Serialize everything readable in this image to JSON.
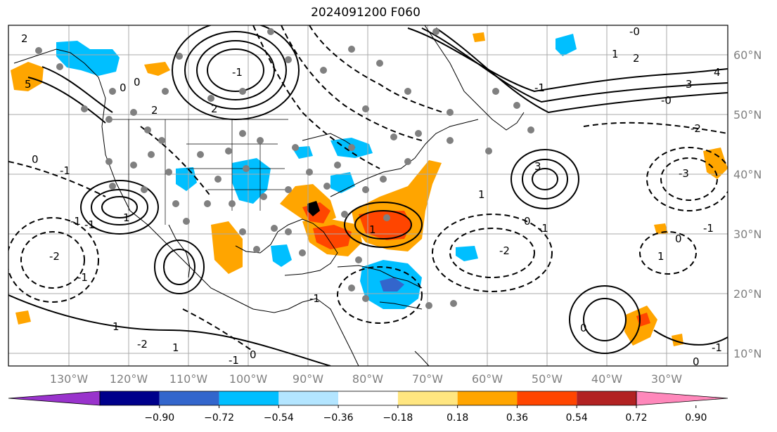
{
  "title": "2024091200 F060",
  "lon_labels": [
    "130°W",
    "120°W",
    "110°W",
    "100°W",
    "90°W",
    "80°W",
    "70°W",
    "60°W",
    "50°W",
    "40°W",
    "30°W"
  ],
  "lat_labels": [
    "60°N",
    "50°N",
    "40°N",
    "30°N",
    "20°N",
    "10°N"
  ],
  "colorbar": {
    "ticks": [
      "−0.90",
      "−0.72",
      "−0.54",
      "−0.36",
      "−0.18",
      "0.18",
      "0.36",
      "0.54",
      "0.72",
      "0.90"
    ],
    "colors": [
      "#9933cc",
      "#00008b",
      "#3366cc",
      "#00bfff",
      "#b3e5ff",
      "#ffffff",
      "#ffe680",
      "#ffa500",
      "#ff4500",
      "#b22222",
      "#ff88bb"
    ]
  },
  "colors": {
    "cyan": "#00bfff",
    "orange": "#ffa500",
    "red": "#ff4500",
    "blue": "#3366cc",
    "dots": "#808080",
    "contour": "#000000",
    "grid": "#aaaaaa"
  },
  "contour_labels": [
    "2",
    "0",
    "5",
    "-1",
    "-0",
    "1",
    "-2",
    "0",
    "2",
    "3",
    "4",
    "2",
    "3",
    "-0",
    "0",
    "1",
    "-1",
    "0",
    "-1",
    "1",
    "-2",
    "-1",
    "-2",
    "0",
    "-3",
    "1",
    "-1",
    "0",
    "1",
    "-1",
    "-1",
    "0",
    "-1",
    "-2",
    "1",
    "-1",
    "2",
    "-1",
    "-1",
    "0",
    "1",
    "1",
    "2",
    "0",
    "-1",
    "-2",
    "2",
    "1",
    "0",
    "-2",
    "0",
    "-1",
    "-1",
    "-1",
    "1",
    "-1",
    "-2",
    "-1"
  ]
}
